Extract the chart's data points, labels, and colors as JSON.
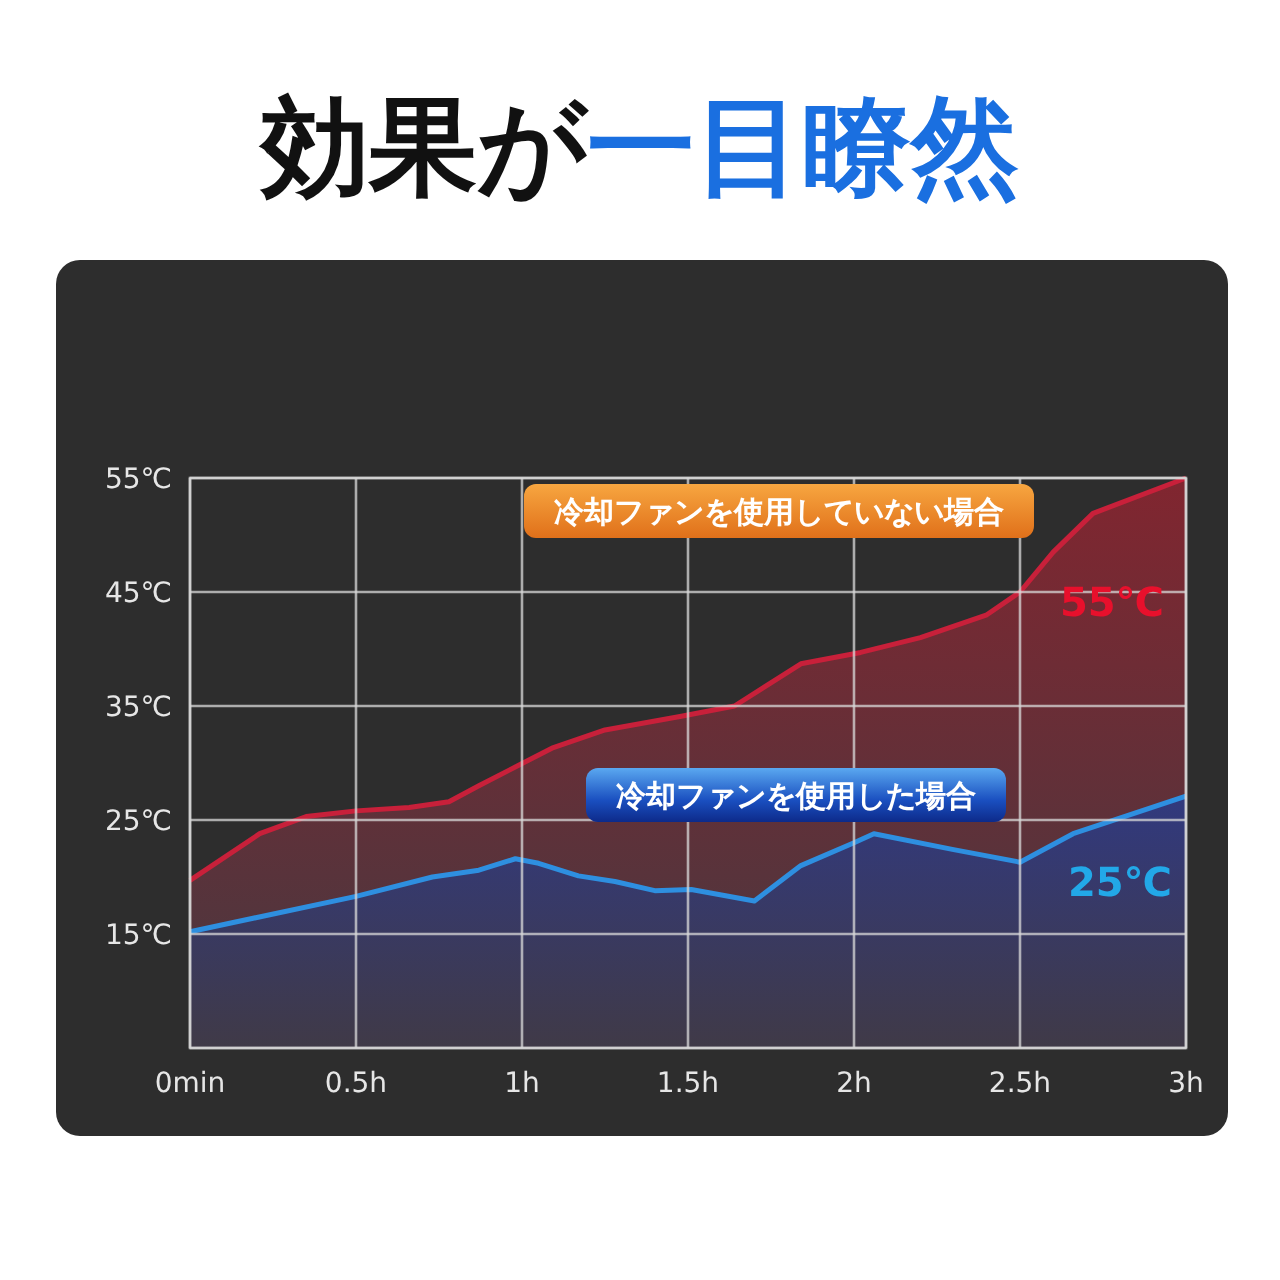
{
  "chart_data": {
    "type": "area",
    "title": "効果が一目瞭然",
    "xlim": [
      0,
      3
    ],
    "ylim": [
      5,
      55
    ],
    "xticks": [
      {
        "value": 0,
        "label": "0min"
      },
      {
        "value": 0.5,
        "label": "0.5h"
      },
      {
        "value": 1,
        "label": "1h"
      },
      {
        "value": 1.5,
        "label": "1.5h"
      },
      {
        "value": 2,
        "label": "2h"
      },
      {
        "value": 2.5,
        "label": "2.5h"
      },
      {
        "value": 3,
        "label": "3h"
      }
    ],
    "yticks": [
      {
        "value": 5,
        "label": null
      },
      {
        "value": 15,
        "label": "15℃"
      },
      {
        "value": 25,
        "label": "25℃"
      },
      {
        "value": 35,
        "label": "35℃"
      },
      {
        "value": 45,
        "label": "45℃"
      },
      {
        "value": 55,
        "label": "55℃"
      }
    ],
    "grid": true,
    "series": [
      {
        "name": "冷却ファンを使用していない場合",
        "color": "#c8203a",
        "x": [
          0,
          0.21,
          0.35,
          0.5,
          0.66,
          0.78,
          0.87,
          0.99,
          1.09,
          1.25,
          1.48,
          1.64,
          1.84,
          2.02,
          2.2,
          2.4,
          2.5,
          2.6,
          2.72,
          3
        ],
        "values": [
          19.7,
          23.8,
          25.3,
          25.8,
          26.1,
          26.6,
          28,
          29.8,
          31.3,
          32.9,
          34.1,
          35,
          38.7,
          39.7,
          41,
          43,
          45,
          48.5,
          51.9,
          55
        ]
      },
      {
        "name": "冷却ファンを使用した場合",
        "color": "#2e8fe0",
        "x": [
          0,
          0.5,
          0.73,
          0.87,
          0.98,
          1.05,
          1.17,
          1.28,
          1.4,
          1.51,
          1.7,
          1.84,
          2.0,
          2.06,
          2.3,
          2.5,
          2.66,
          3
        ],
        "values": [
          15.2,
          18.3,
          20,
          20.6,
          21.6,
          21.2,
          20.1,
          19.6,
          18.8,
          18.9,
          17.9,
          21,
          23,
          23.8,
          22.4,
          21.3,
          23.8,
          27.1
        ]
      }
    ],
    "annotations": [
      "55℃",
      "25℃"
    ]
  }
}
